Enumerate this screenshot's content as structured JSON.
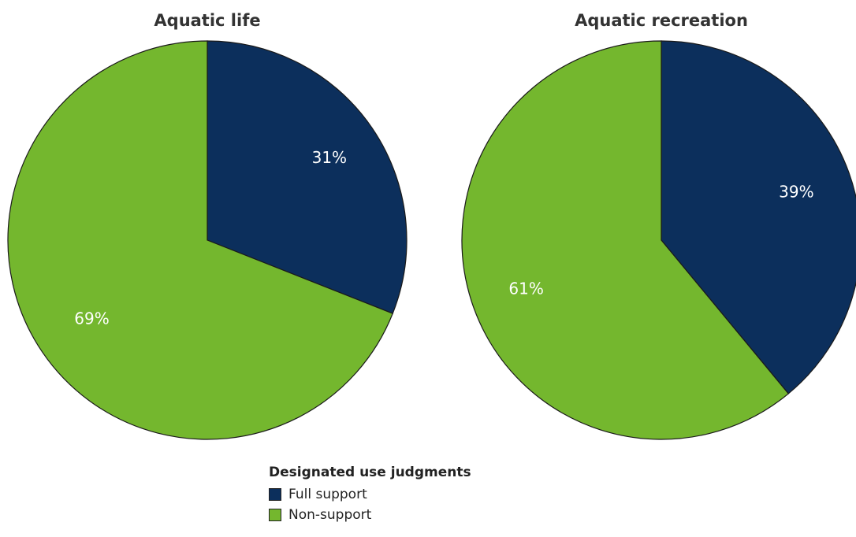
{
  "chart_data": [
    {
      "type": "pie",
      "title": "Aquatic life",
      "slices": [
        {
          "label": "Full support",
          "value": 31,
          "display": "31%",
          "color": "#0c2f5c"
        },
        {
          "label": "Non-support",
          "value": 69,
          "display": "69%",
          "color": "#74b72e"
        }
      ]
    },
    {
      "type": "pie",
      "title": "Aquatic recreation",
      "slices": [
        {
          "label": "Full support",
          "value": 39,
          "display": "39%",
          "color": "#0c2f5c"
        },
        {
          "label": "Non-support",
          "value": 61,
          "display": "61%",
          "color": "#74b72e"
        }
      ]
    }
  ],
  "legend": {
    "title": "Designated use judgments",
    "items": [
      {
        "label": "Full support",
        "color": "#0c2f5c"
      },
      {
        "label": "Non-support",
        "color": "#74b72e"
      }
    ]
  }
}
